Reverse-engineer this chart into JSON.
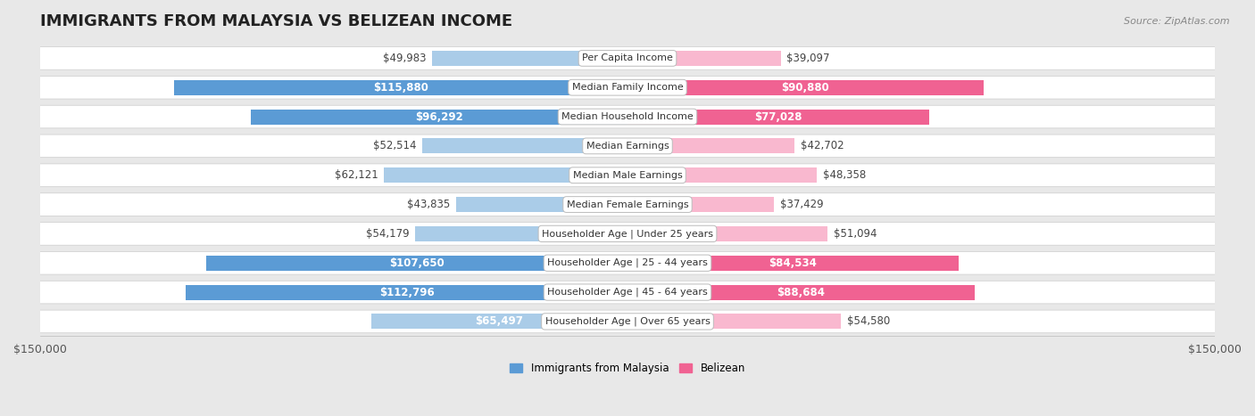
{
  "title": "IMMIGRANTS FROM MALAYSIA VS BELIZEAN INCOME",
  "source": "Source: ZipAtlas.com",
  "categories": [
    "Per Capita Income",
    "Median Family Income",
    "Median Household Income",
    "Median Earnings",
    "Median Male Earnings",
    "Median Female Earnings",
    "Householder Age | Under 25 years",
    "Householder Age | 25 - 44 years",
    "Householder Age | 45 - 64 years",
    "Householder Age | Over 65 years"
  ],
  "malaysia_values": [
    49983,
    115880,
    96292,
    52514,
    62121,
    43835,
    54179,
    107650,
    112796,
    65497
  ],
  "belizean_values": [
    39097,
    90880,
    77028,
    42702,
    48358,
    37429,
    51094,
    84534,
    88684,
    54580
  ],
  "malaysia_labels": [
    "$49,983",
    "$115,880",
    "$96,292",
    "$52,514",
    "$62,121",
    "$43,835",
    "$54,179",
    "$107,650",
    "$112,796",
    "$65,497"
  ],
  "belizean_labels": [
    "$39,097",
    "$90,880",
    "$77,028",
    "$42,702",
    "$48,358",
    "$37,429",
    "$51,094",
    "$84,534",
    "$88,684",
    "$54,580"
  ],
  "malaysia_color_light": "#aacce8",
  "malaysia_color_dark": "#5b9bd5",
  "belizean_color_light": "#f9b8cf",
  "belizean_color_dark": "#f06292",
  "malaysia_dark_threshold": 70000,
  "belizean_dark_threshold": 70000,
  "max_value": 150000,
  "background_color": "#e8e8e8",
  "row_bg_color": "#ffffff",
  "bar_height": 0.52,
  "title_fontsize": 13,
  "label_fontsize": 8.5,
  "axis_label_fontsize": 9,
  "inside_label_threshold_malaysia": 65000,
  "inside_label_threshold_belizean": 65000
}
